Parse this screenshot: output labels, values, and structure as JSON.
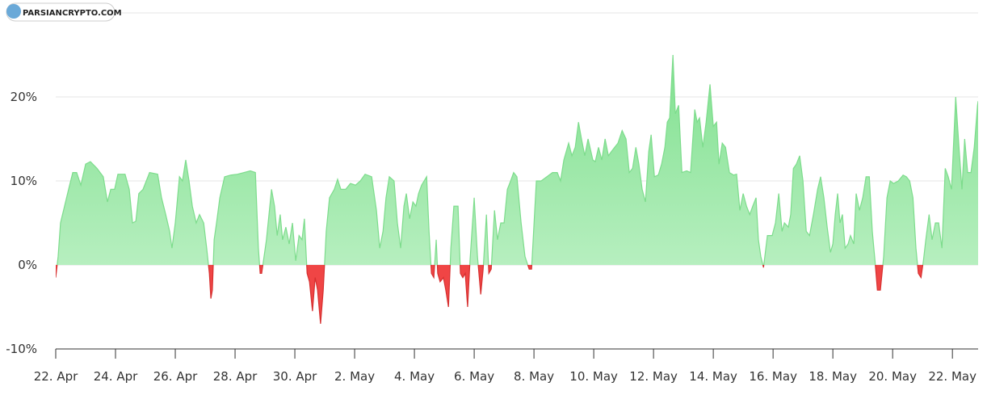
{
  "chart_data": {
    "type": "area",
    "watermark": "PARSIANCRYPTO.COM",
    "x": [
      0,
      0.08,
      0.16,
      0.43,
      0.57,
      0.7,
      0.84,
      1.0,
      1.16,
      1.38,
      1.59,
      1.73,
      1.84,
      1.97,
      2.08,
      2.32,
      2.46,
      2.57,
      2.68,
      2.78,
      2.92,
      3.14,
      3.41,
      3.54,
      3.68,
      3.81,
      3.89,
      4.0,
      4.14,
      4.24,
      4.35,
      4.46,
      4.57,
      4.7,
      4.81,
      4.95,
      5.05,
      5.14,
      5.19,
      5.24,
      5.3,
      5.38,
      5.49,
      5.65,
      5.86,
      6.08,
      6.3,
      6.51,
      6.68,
      6.78,
      6.84,
      6.89,
      6.95,
      7.05,
      7.22,
      7.32,
      7.41,
      7.51,
      7.59,
      7.7,
      7.81,
      7.92,
      8.03,
      8.14,
      8.24,
      8.32,
      8.41,
      8.49,
      8.59,
      8.68,
      8.76,
      8.86,
      8.95,
      9.05,
      9.16,
      9.32,
      9.43,
      9.54,
      9.7,
      9.86,
      10.03,
      10.19,
      10.35,
      10.57,
      10.73,
      10.84,
      10.95,
      11.05,
      11.16,
      11.32,
      11.43,
      11.54,
      11.65,
      11.73,
      11.84,
      11.95,
      12.05,
      12.14,
      12.24,
      12.41,
      12.49,
      12.57,
      12.65,
      12.73,
      12.78,
      12.86,
      12.97,
      13.05,
      13.14,
      13.22,
      13.32,
      13.46,
      13.54,
      13.62,
      13.7,
      13.78,
      13.86,
      14.0,
      14.11,
      14.22,
      14.3,
      14.41,
      14.49,
      14.57,
      14.68,
      14.78,
      14.89,
      15.0,
      15.11,
      15.22,
      15.32,
      15.43,
      15.57,
      15.7,
      15.84,
      15.92,
      16.08,
      16.24,
      16.43,
      16.62,
      16.78,
      16.89,
      17.0,
      17.16,
      17.27,
      17.38,
      17.49,
      17.59,
      17.7,
      17.81,
      17.97,
      18.05,
      18.16,
      18.27,
      18.38,
      18.49,
      18.59,
      18.7,
      18.81,
      18.95,
      19.08,
      19.19,
      19.3,
      19.41,
      19.51,
      19.62,
      19.73,
      19.84,
      19.92,
      20.03,
      20.16,
      20.27,
      20.38,
      20.46,
      20.54,
      20.65,
      20.73,
      20.84,
      20.95,
      21.11,
      21.24,
      21.38,
      21.46,
      21.54,
      21.65,
      21.76,
      21.89,
      22.0,
      22.11,
      22.19,
      22.3,
      22.41,
      22.54,
      22.68,
      22.78,
      22.89,
      23.0,
      23.11,
      23.22,
      23.32,
      23.43,
      23.51,
      23.59,
      23.68,
      23.81,
      23.97,
      24.08,
      24.19,
      24.3,
      24.38,
      24.51,
      24.59,
      24.68,
      24.78,
      24.89,
      25.0,
      25.11,
      25.22,
      25.35,
      25.49,
      25.59,
      25.7,
      25.81,
      25.92,
      26.0,
      26.08,
      26.16,
      26.24,
      26.32,
      26.41,
      26.51,
      26.59,
      26.7,
      26.78,
      26.89,
      27.0,
      27.11,
      27.22,
      27.32,
      27.41,
      27.49,
      27.59,
      27.7,
      27.81,
      27.92,
      28.03,
      28.19,
      28.35,
      28.46,
      28.57,
      28.68,
      28.78,
      28.86,
      28.95,
      29.03,
      29.11,
      29.22,
      29.32,
      29.43,
      29.54,
      29.65,
      29.76,
      29.86,
      29.97,
      30.11,
      30.22,
      30.32,
      30.41,
      30.51,
      30.62,
      30.73,
      30.84,
      30.86
    ],
    "values": [
      -1.5,
      1,
      5,
      9,
      11,
      11,
      9.5,
      12,
      12.3,
      11.5,
      10.5,
      7.5,
      9,
      9,
      10.8,
      10.8,
      9,
      5,
      5.2,
      8.5,
      9,
      11,
      10.8,
      8,
      6,
      4,
      2,
      5,
      10.5,
      10,
      12.5,
      10,
      7,
      5,
      6,
      5,
      2,
      -1,
      -4,
      -3,
      3,
      5,
      8,
      10.5,
      10.7,
      10.8,
      11,
      11.2,
      11,
      2,
      -1,
      -1,
      0.5,
      3,
      9,
      7,
      3.5,
      6,
      3,
      4.5,
      2.5,
      5,
      0.5,
      3.5,
      3,
      5.5,
      -1,
      -2,
      -5.5,
      -1.5,
      -3,
      -7,
      -3,
      4,
      8,
      9,
      10.2,
      9,
      9,
      9.7,
      9.5,
      10,
      10.8,
      10.5,
      6.5,
      2,
      4,
      8,
      10.5,
      10,
      5,
      2,
      7,
      8.5,
      5.5,
      7.5,
      7,
      8.5,
      9.5,
      10.5,
      4,
      -1,
      -1.5,
      3,
      -1,
      -2,
      -1.5,
      -3,
      -5,
      2,
      7,
      7,
      -1,
      -1.5,
      -1,
      -5,
      0.5,
      8,
      1,
      -3.5,
      -0.5,
      6,
      -1,
      -0.5,
      6.5,
      3,
      5,
      5,
      9,
      10,
      11,
      10.5,
      5,
      1,
      -0.5,
      -0.5,
      10,
      10,
      10.5,
      11,
      11,
      10,
      12.5,
      14.5,
      13,
      14,
      17,
      15,
      13,
      15,
      12.5,
      12.3,
      14,
      12.5,
      15,
      13,
      13.5,
      14,
      14.5,
      16,
      15,
      11,
      11.5,
      14,
      12,
      9,
      7.5,
      13.5,
      15.5,
      10.5,
      10.7,
      12,
      14,
      17,
      17.5,
      25,
      18,
      19,
      11,
      11.2,
      11,
      18.5,
      17,
      17.5,
      14,
      17,
      21.5,
      16.5,
      17,
      12,
      14.5,
      14,
      11,
      10.7,
      10.8,
      6.5,
      8.5,
      7,
      6,
      7,
      8,
      3,
      1,
      -0.3,
      3.5,
      3.5,
      5,
      8.5,
      4,
      5,
      4.5,
      6,
      11.5,
      12,
      13,
      10,
      4,
      3.5,
      6,
      9,
      10.5,
      8,
      4.5,
      1.5,
      2.5,
      6,
      8.5,
      5,
      6,
      2,
      2.5,
      3.5,
      2.5,
      8.5,
      6.5,
      8,
      10.5,
      10.5,
      4,
      0.5,
      -3,
      -3,
      1,
      8,
      10,
      9.7,
      10,
      10.7,
      10.5,
      10,
      8,
      2,
      -1,
      -1.5,
      0.5,
      3,
      6,
      3,
      5,
      5,
      2,
      11.5,
      10.5,
      9,
      20,
      14,
      9,
      15,
      11,
      11,
      14,
      19,
      19.5
    ],
    "color_positive": "#7ddc8c",
    "color_negative": "#f04545",
    "xlim": [
      0,
      30.86
    ],
    "xticks": [
      {
        "value": 0,
        "label": "22. Apr"
      },
      {
        "value": 2,
        "label": "24. Apr"
      },
      {
        "value": 4,
        "label": "26. Apr"
      },
      {
        "value": 6,
        "label": "28. Apr"
      },
      {
        "value": 8,
        "label": "30. Apr"
      },
      {
        "value": 10,
        "label": "2. May"
      },
      {
        "value": 12,
        "label": "4. May"
      },
      {
        "value": 14,
        "label": "6. May"
      },
      {
        "value": 16,
        "label": "8. May"
      },
      {
        "value": 18,
        "label": "10. May"
      },
      {
        "value": 20,
        "label": "12. May"
      },
      {
        "value": 22,
        "label": "14. May"
      },
      {
        "value": 24,
        "label": "16. May"
      },
      {
        "value": 26,
        "label": "18. May"
      },
      {
        "value": 28,
        "label": "20. May"
      },
      {
        "value": 30,
        "label": "22. May"
      }
    ],
    "ylim": [
      -10,
      30
    ],
    "yticks": [
      {
        "value": -10,
        "label": "-10%"
      },
      {
        "value": 0,
        "label": "0%"
      },
      {
        "value": 10,
        "label": "10%"
      },
      {
        "value": 20,
        "label": "20%"
      }
    ],
    "grid": true
  }
}
